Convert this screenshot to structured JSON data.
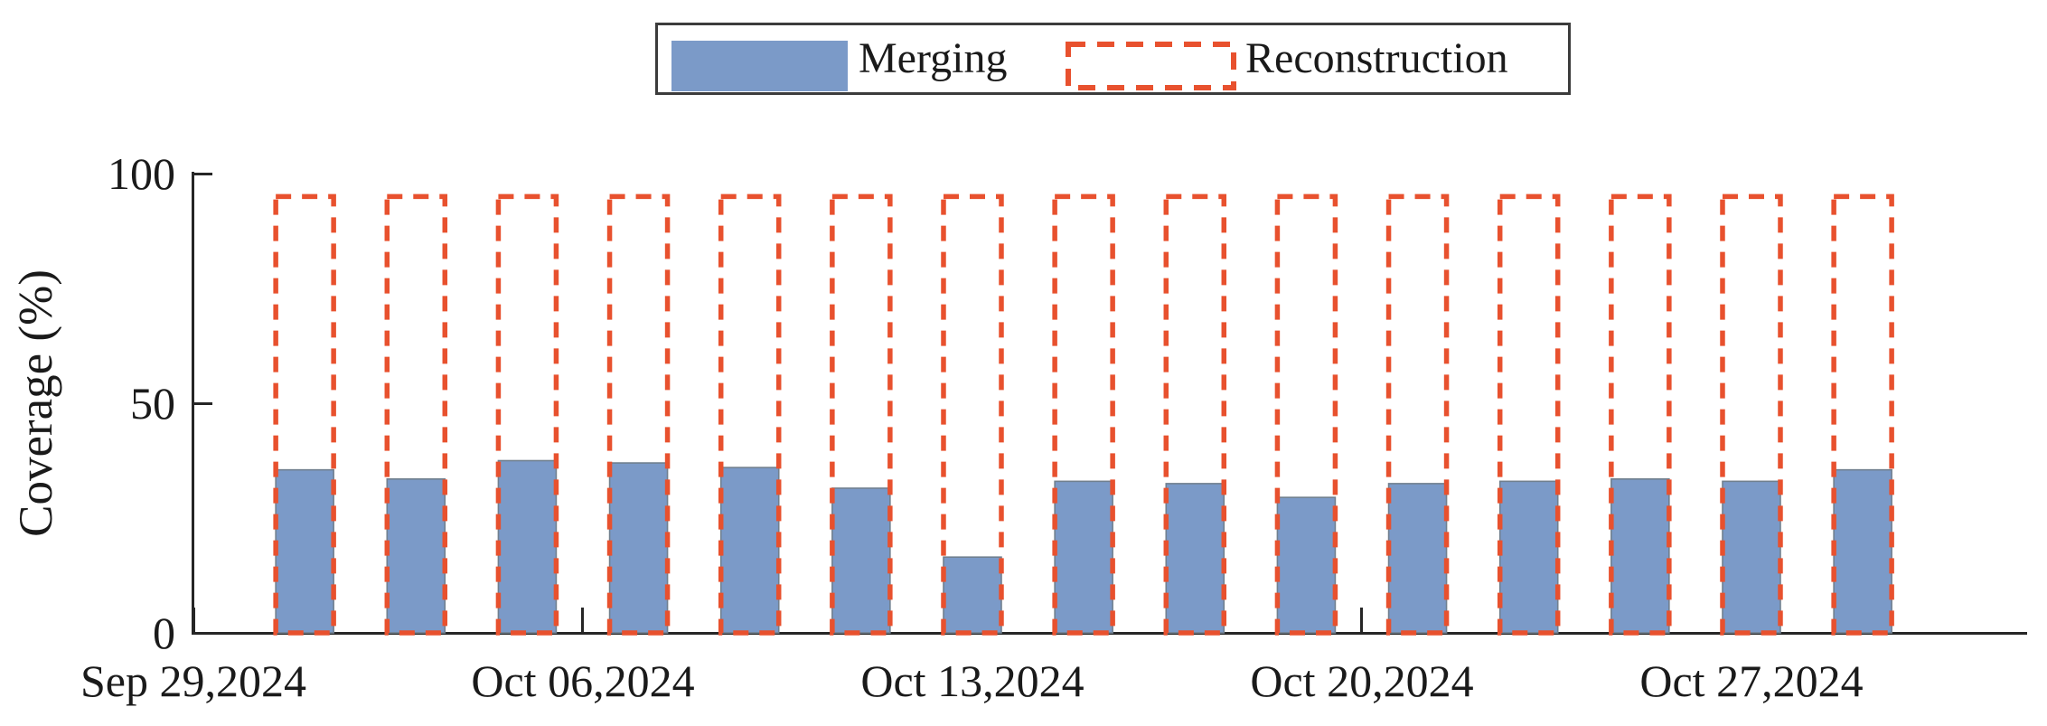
{
  "colors": {
    "merging_fill": "#7b9ac8",
    "merging_edge": "#71808f",
    "reconstruction_stroke": "#e8512e",
    "axis": "#262626",
    "text": "#1a1a1a",
    "legend_border": "#3c3c3c"
  },
  "chart_data": {
    "type": "bar",
    "title": "",
    "xlabel": "",
    "ylabel": "Coverage (%)",
    "ylim": [
      0,
      100
    ],
    "yticks": [
      0,
      50,
      100
    ],
    "grid": false,
    "legend_position": "top-center",
    "x_axis_start_label": "Sep 29,2024",
    "xtick_labels": [
      "Sep 29,2024",
      "Oct 06,2024",
      "Oct 13,2024",
      "Oct 20,2024",
      "Oct 27,2024"
    ],
    "xtick_day_offsets": [
      0,
      7,
      14,
      21,
      28
    ],
    "bar_day_offsets": [
      2,
      4,
      6,
      8,
      10,
      12,
      14,
      16,
      18,
      20,
      22,
      24,
      26,
      28,
      30
    ],
    "series": [
      {
        "name": "Merging",
        "style": "solid-fill",
        "values": [
          35.5,
          33.5,
          37.5,
          37,
          36,
          31.5,
          16.5,
          33,
          32.5,
          29.5,
          32.5,
          33,
          33.5,
          33,
          35.5
        ]
      },
      {
        "name": "Reconstruction",
        "style": "dashed-outline",
        "values": [
          95,
          95,
          95,
          95,
          95,
          95,
          95,
          95,
          95,
          95,
          95,
          95,
          95,
          95,
          95
        ]
      }
    ]
  }
}
